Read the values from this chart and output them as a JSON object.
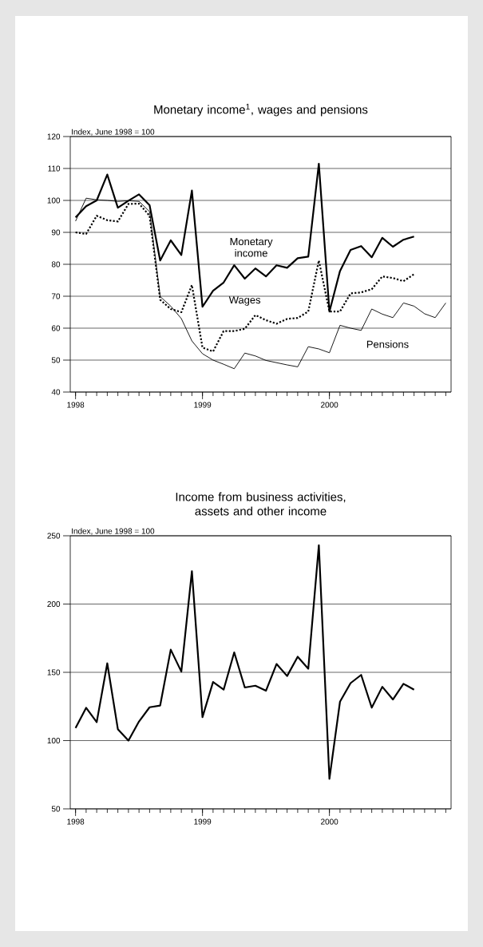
{
  "chart_data": [
    {
      "type": "line",
      "title": "Monetary income$^{1}$, wages and pensions",
      "ylabel": "Index, June 1998 = 100",
      "x": [
        "1998-01",
        "1998-02",
        "1998-03",
        "1998-04",
        "1998-05",
        "1998-06",
        "1998-07",
        "1998-08",
        "1998-09",
        "1998-10",
        "1998-11",
        "1998-12",
        "1999-01",
        "1999-02",
        "1999-03",
        "1999-04",
        "1999-05",
        "1999-06",
        "1999-07",
        "1999-08",
        "1999-09",
        "1999-10",
        "1999-11",
        "1999-12",
        "2000-01",
        "2000-02",
        "2000-03",
        "2000-04",
        "2000-05",
        "2000-06",
        "2000-07",
        "2000-08",
        "2000-09",
        "2000-10",
        "2000-11",
        "2000-12"
      ],
      "series": [
        {
          "name": "Monetary income",
          "color": "#000000",
          "line_style": "solid",
          "values": [
            94.7,
            98.2,
            100,
            108.1,
            97.7,
            99.9,
            101.9,
            98.5,
            81.2,
            87.5,
            82.9,
            103.1,
            66.7,
            71.7,
            74.3,
            79.7,
            75.5,
            78.7,
            76.2,
            79.7,
            78.9,
            81.9,
            82.4,
            111.5,
            65.2,
            77.9,
            84.5,
            85.7,
            82.2,
            88.3,
            85.5,
            87.7,
            88.7,
            null,
            null,
            null
          ]
        },
        {
          "name": "Wages",
          "color": "#000000",
          "line_style": "dotted",
          "values": [
            90,
            89.5,
            95.2,
            93.8,
            93.4,
            98.9,
            99,
            95.2,
            68.9,
            66,
            65,
            73.5,
            53.9,
            52.7,
            59.1,
            59.1,
            59.8,
            64.1,
            62.5,
            61.4,
            62.9,
            63.2,
            65.2,
            81.2,
            65.2,
            65.2,
            70.9,
            71.2,
            72.2,
            76.2,
            75.7,
            74.7,
            76.9,
            null,
            null,
            null
          ]
        },
        {
          "name": "Pensions",
          "color": "#000000",
          "line_style": "solid",
          "values": [
            93.5,
            100.7,
            100.2,
            100,
            99.7,
            99.9,
            99.7,
            96.5,
            69.9,
            66.9,
            63,
            56,
            52,
            50,
            48.7,
            47.3,
            52.2,
            51.3,
            49.9,
            49.2,
            48.5,
            47.9,
            54.2,
            53.5,
            52.3,
            60.9,
            60,
            59.3,
            66,
            64.4,
            63.3,
            67.9,
            66.9,
            64.5,
            63.3,
            67.9
          ]
        }
      ],
      "xlim": [
        "1997-12-16",
        "2000-12-16"
      ],
      "xticks": [
        {
          "value": "1998-01",
          "label": "1998"
        },
        {
          "value": "1999-01",
          "label": "1999"
        },
        {
          "value": "2000-01",
          "label": "2000"
        }
      ],
      "ylim": [
        40,
        120
      ],
      "yticks": [
        40,
        50,
        60,
        70,
        80,
        90,
        100,
        110,
        120
      ],
      "grid": "y"
    },
    {
      "type": "line",
      "title": "Income from business activities, assets and other income",
      "ylabel": "Index, June 1998 = 100",
      "x": [
        "1998-01",
        "1998-02",
        "1998-03",
        "1998-04",
        "1998-05",
        "1998-06",
        "1998-07",
        "1998-08",
        "1998-09",
        "1998-10",
        "1998-11",
        "1998-12",
        "1999-01",
        "1999-02",
        "1999-03",
        "1999-04",
        "1999-05",
        "1999-06",
        "1999-07",
        "1999-08",
        "1999-09",
        "1999-10",
        "1999-11",
        "1999-12",
        "2000-01",
        "2000-02",
        "2000-03",
        "2000-04",
        "2000-05",
        "2000-06",
        "2000-07",
        "2000-08",
        "2000-09"
      ],
      "series": [
        {
          "color": "#000000",
          "line_style": "solid",
          "values": [
            109.2,
            124,
            113.5,
            156.6,
            108.4,
            100,
            114,
            124.4,
            125.7,
            166.6,
            150.5,
            224.1,
            117.2,
            142.9,
            137.3,
            164.6,
            138.9,
            140.2,
            136.5,
            156.1,
            147.3,
            161.4,
            152.6,
            243.1,
            72,
            128.5,
            142.1,
            148.1,
            124.1,
            139.4,
            130.1,
            141.6,
            137.3
          ]
        }
      ],
      "xlim": [
        "1997-12-16",
        "2000-12-16"
      ],
      "xticks": [
        {
          "value": "1998-01",
          "label": "1998"
        },
        {
          "value": "1999-01",
          "label": "1999"
        },
        {
          "value": "2000-01",
          "label": "2000"
        }
      ],
      "ylim": [
        50,
        250
      ],
      "yticks": [
        50,
        100,
        150,
        200,
        250
      ],
      "grid": "y"
    }
  ]
}
